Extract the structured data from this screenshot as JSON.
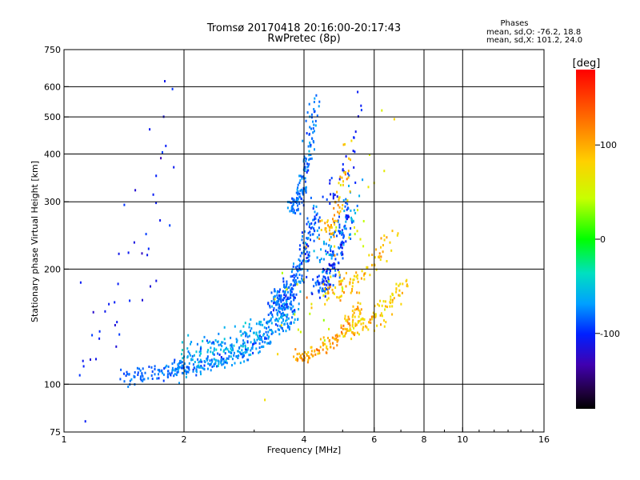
{
  "chart_data": {
    "type": "scatter",
    "title": "Tromsø 20170418 20:16:00-20:17:43",
    "subtitle": "RwPretec (8p)",
    "xlabel": "Frequency [MHz]",
    "ylabel": "Stationary phase Virtual Height [km]",
    "x_scale": "log",
    "y_scale": "log",
    "xlim": [
      1,
      16
    ],
    "ylim": [
      75,
      750
    ],
    "x_ticks": [
      1,
      2,
      4,
      6,
      8,
      10,
      16
    ],
    "x_tick_labels": [
      "1",
      "2",
      "4",
      "6",
      "8",
      "10",
      "16"
    ],
    "y_ticks": [
      75,
      100,
      200,
      300,
      400,
      500,
      600,
      750
    ],
    "y_tick_labels": [
      "75",
      "100",
      "200",
      "300",
      "400",
      "500",
      "600",
      "750"
    ],
    "grid": true,
    "stats": {
      "heading": "Phases",
      "line1": "mean, sd,O: -76.2, 18.8",
      "line2": "mean, sd,X: 101.2, 24.0"
    },
    "colorbar": {
      "label": "[deg]",
      "range": [
        -180,
        180
      ],
      "ticks": [
        100,
        0,
        -100
      ],
      "tick_labels": [
        "100",
        "0",
        "-100"
      ]
    },
    "series": [
      {
        "name": "O",
        "mean_phase": -76.2,
        "sd_phase": 18.8,
        "segments": [
          {
            "f0": 1.42,
            "f1": 2.0,
            "h0": 104,
            "h1": 112,
            "n": 80,
            "phase": -85,
            "sd": 12,
            "jf": 0.03,
            "jh": 0.05
          },
          {
            "f0": 1.85,
            "f1": 3.8,
            "h0": 110,
            "h1": 150,
            "n": 240,
            "phase": -75,
            "sd": 22,
            "jf": 0.04,
            "jh": 0.06
          },
          {
            "f0": 2.0,
            "f1": 3.9,
            "h0": 123,
            "h1": 168,
            "n": 180,
            "phase": -65,
            "sd": 25,
            "jf": 0.05,
            "jh": 0.08
          },
          {
            "f0": 3.3,
            "f1": 4.3,
            "h0": 160,
            "h1": 290,
            "n": 260,
            "phase": -85,
            "sd": 22,
            "jf": 0.04,
            "jh": 0.1
          },
          {
            "f0": 3.7,
            "f1": 4.3,
            "h0": 290,
            "h1": 600,
            "n": 150,
            "phase": -80,
            "sd": 18,
            "jf": 0.03,
            "jh": 0.06
          },
          {
            "f0": 4.3,
            "f1": 5.2,
            "h0": 180,
            "h1": 300,
            "n": 140,
            "phase": -95,
            "sd": 25,
            "jf": 0.04,
            "jh": 0.08
          },
          {
            "f0": 4.3,
            "f1": 5.5,
            "h0": 220,
            "h1": 330,
            "n": 60,
            "phase": -70,
            "sd": 30,
            "jf": 0.05,
            "jh": 0.1
          },
          {
            "f0": 4.6,
            "f1": 5.6,
            "h0": 320,
            "h1": 550,
            "n": 30,
            "phase": -100,
            "sd": 20,
            "jf": 0.03,
            "jh": 0.1
          },
          {
            "f0": 1.05,
            "f1": 1.9,
            "h0": 120,
            "h1": 520,
            "n": 45,
            "phase": -105,
            "sd": 22,
            "jf": 0.06,
            "jh": 0.4
          }
        ]
      },
      {
        "name": "X",
        "mean_phase": 101.2,
        "sd_phase": 24.0,
        "segments": [
          {
            "f0": 3.8,
            "f1": 5.6,
            "h0": 118,
            "h1": 165,
            "n": 110,
            "phase": 110,
            "sd": 24,
            "jf": 0.03,
            "jh": 0.05
          },
          {
            "f0": 5.0,
            "f1": 7.1,
            "h0": 140,
            "h1": 185,
            "n": 110,
            "phase": 95,
            "sd": 25,
            "jf": 0.04,
            "jh": 0.07
          },
          {
            "f0": 4.5,
            "f1": 6.6,
            "h0": 175,
            "h1": 245,
            "n": 90,
            "phase": 100,
            "sd": 24,
            "jf": 0.05,
            "jh": 0.08
          },
          {
            "f0": 4.5,
            "f1": 5.2,
            "h0": 250,
            "h1": 440,
            "n": 60,
            "phase": 105,
            "sd": 22,
            "jf": 0.04,
            "jh": 0.08
          },
          {
            "f0": 3.4,
            "f1": 6.4,
            "h0": 140,
            "h1": 500,
            "n": 45,
            "phase": 75,
            "sd": 35,
            "jf": 0.08,
            "jh": 0.3
          }
        ]
      }
    ]
  }
}
